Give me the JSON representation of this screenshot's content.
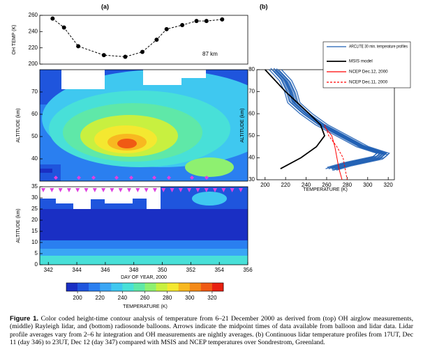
{
  "panel_labels": [
    "(a)",
    "(b)"
  ],
  "oh_chart": {
    "type": "line",
    "ylabel": "OH TEMP (K)",
    "annotation": "87 km",
    "color": "#000000",
    "x": [
      342.3,
      343.1,
      344.1,
      345.9,
      347.4,
      348.6,
      349.6,
      350.3,
      351.4,
      352.4,
      353.1,
      354.2
    ],
    "values": [
      256,
      245,
      222,
      211,
      209,
      215,
      230,
      243,
      248,
      253,
      253,
      255
    ],
    "xlim": [
      341.4,
      356
    ],
    "ylim": [
      200,
      260
    ],
    "yticks": [
      200,
      220,
      240,
      260
    ]
  },
  "lidar_chart": {
    "type": "contour",
    "ylabel": "ALTITUDE (km)",
    "xlim": [
      341.4,
      356
    ],
    "ylim": [
      30,
      80
    ],
    "yticks": [
      40,
      50,
      60,
      70
    ]
  },
  "radiosonde_chart": {
    "type": "contour",
    "ylabel": "ALTITUDE (km)",
    "xlabel": "DAY OF YEAR, 2000",
    "xlim": [
      341.4,
      356
    ],
    "xticks": [
      342,
      344,
      346,
      348,
      350,
      352,
      354,
      356
    ],
    "ylim": [
      0,
      35
    ],
    "yticks": [
      0,
      5,
      10,
      15,
      20,
      25,
      30,
      35
    ]
  },
  "colorbar": {
    "label": "TEMPERATURE (K)",
    "lim": [
      190,
      330
    ],
    "ticks": [
      200,
      220,
      240,
      260,
      280,
      300,
      320
    ],
    "colors": [
      "#1a2fc4",
      "#1f55dd",
      "#2a7ff0",
      "#3aa6f5",
      "#3fc8f0",
      "#48e0d8",
      "#5fe8a8",
      "#8ef070",
      "#c8f040",
      "#f4e830",
      "#f8b820",
      "#f48a18",
      "#f05a14",
      "#e82010"
    ]
  },
  "profile_chart": {
    "type": "line",
    "xlabel": "TEMPERATURE (K)",
    "ylabel": "ALTITUDE (km)",
    "xlim": [
      192,
      326
    ],
    "xticks": [
      200,
      220,
      240,
      260,
      280,
      300,
      320
    ],
    "ylim": [
      30,
      80
    ],
    "yticks": [
      30,
      40,
      50,
      60,
      70,
      80
    ],
    "series": [
      {
        "name": "ARCLITE 30 min. temperature profiles",
        "color": "#1f5fb4",
        "dash": false,
        "x": [
          210,
          220,
          225,
          228,
          240,
          255,
          275,
          295,
          315,
          310,
          280,
          265
        ],
        "values": [
          80,
          75,
          70,
          65,
          60,
          55,
          50,
          45,
          42,
          40,
          37,
          35
        ]
      },
      {
        "name": "MSIS model",
        "color": "#000000",
        "dash": false,
        "x": [
          200,
          220,
          243,
          254,
          258,
          250,
          235,
          215
        ],
        "values": [
          80,
          70,
          60,
          55,
          50,
          45,
          40,
          35
        ]
      },
      {
        "name": "NCEP Dec.12, 2000",
        "color": "#ff0000",
        "dash": false,
        "x": [
          258,
          265,
          268,
          270,
          272,
          275
        ],
        "values": [
          54,
          50,
          45,
          40,
          35,
          30
        ]
      },
      {
        "name": "NCEP Dec.11, 2000",
        "color": "#ff0000",
        "dash": true,
        "x": [
          258,
          262,
          270,
          276,
          278,
          280
        ],
        "values": [
          55,
          50,
          45,
          40,
          35,
          30
        ]
      }
    ]
  },
  "caption": {
    "label": "Figure 1.",
    "text": "Color coded height-time contour analysis of temperature from 6–21 December 2000 as derived from (top) OH airglow measurements, (middle) Rayleigh lidar, and (bottom) radiosonde balloons. Arrows indicate the midpoint times of data available from balloon and lidar data. Lidar profile averages vary from 2–6 hr integration and OH measurements are nightly averages. (b) Continuous lidar temperature profiles from 17UT, Dec 11 (day 346) to 23UT, Dec 12 (day 347) compared with MSIS and NCEP temperatures over Sondrestrom, Greenland."
  }
}
